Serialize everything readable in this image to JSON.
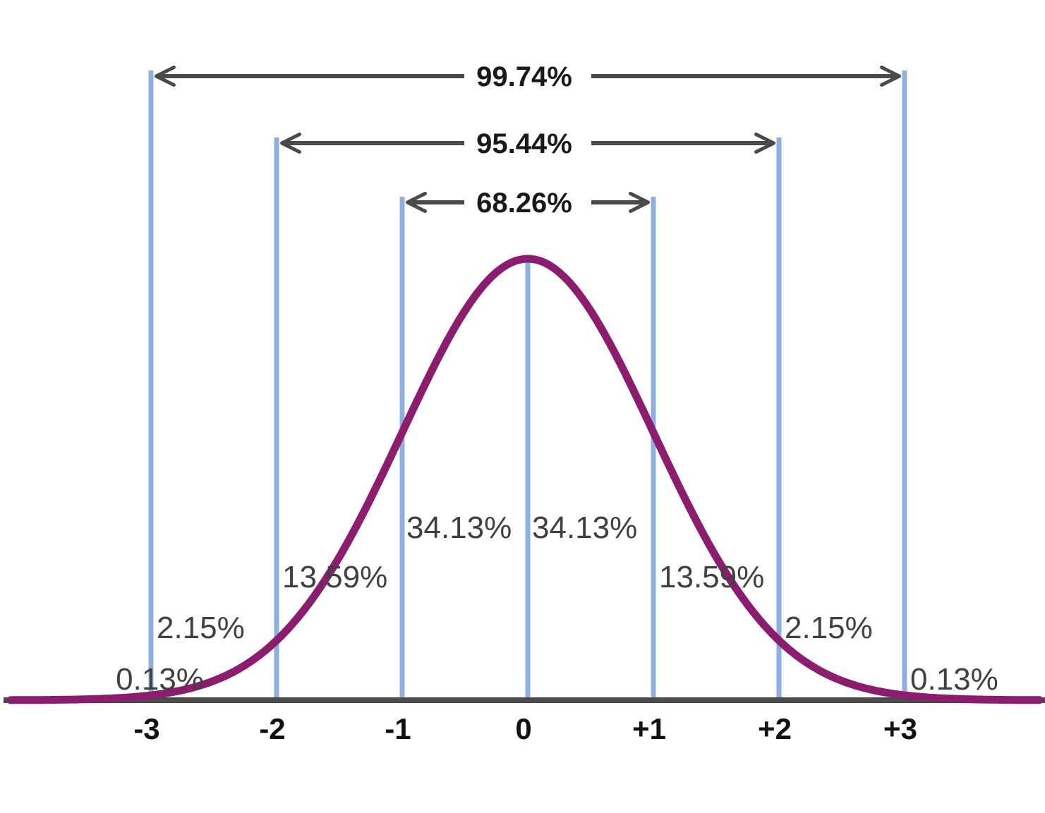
{
  "chart_data": {
    "type": "line",
    "title": "",
    "xlabel": "",
    "ylabel": "",
    "xlim": [
      -4,
      4
    ],
    "distribution": "standard normal",
    "sigma_positions": [
      -3,
      -2,
      -1,
      0,
      1,
      2,
      3
    ],
    "tick_labels": [
      "-3",
      "-2",
      "-1",
      "0",
      "+1",
      "+2",
      "+3"
    ],
    "regions": [
      {
        "from": -4,
        "to": -3,
        "label": "0.13%"
      },
      {
        "from": -3,
        "to": -2,
        "label": "2.15%"
      },
      {
        "from": -2,
        "to": -1,
        "label": "13.59%"
      },
      {
        "from": -1,
        "to": 0,
        "label": "34.13%"
      },
      {
        "from": 0,
        "to": 1,
        "label": "34.13%"
      },
      {
        "from": 1,
        "to": 2,
        "label": "13.59%"
      },
      {
        "from": 2,
        "to": 3,
        "label": "2.15%"
      },
      {
        "from": 3,
        "to": 4,
        "label": "0.13%"
      }
    ],
    "ranges": [
      {
        "from": -3,
        "to": 3,
        "label": "99.74%"
      },
      {
        "from": -2,
        "to": 2,
        "label": "95.44%"
      },
      {
        "from": -1,
        "to": 1,
        "label": "68.26%"
      }
    ],
    "colors": {
      "curve": "#8b1c6e",
      "sigma_lines": "#8fb0de",
      "baseline": "#4a4a4a",
      "arrows": "#4a4a4a"
    }
  }
}
